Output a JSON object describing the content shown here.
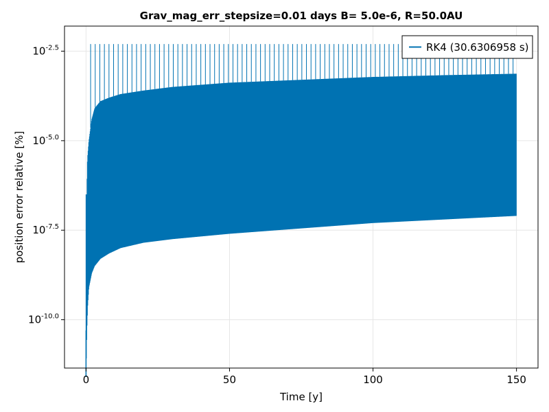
{
  "chart_data": {
    "type": "line",
    "title": "Grav_mag_err_stepsize=0.01 days B= 5.0e-6, R=50.0AU",
    "xlabel": "Time [y]",
    "ylabel": "position error relative [%]",
    "xlim": [
      -7.5,
      157.5
    ],
    "ylim_log10": [
      -11.35,
      -1.8
    ],
    "y_scale": "log10",
    "grid": true,
    "legend_position": "top-right",
    "x_ticks": [
      {
        "value": 0,
        "label": "0"
      },
      {
        "value": 50,
        "label": "50"
      },
      {
        "value": 100,
        "label": "100"
      },
      {
        "value": 150,
        "label": "150"
      }
    ],
    "y_ticks": [
      {
        "exp": -2.5,
        "base": "10",
        "sup": "-2.5"
      },
      {
        "exp": -5.0,
        "base": "10",
        "sup": "-5.0"
      },
      {
        "exp": -7.5,
        "base": "10",
        "sup": "-7.5"
      },
      {
        "exp": -10.0,
        "base": "10",
        "sup": "-10.0"
      }
    ],
    "series": [
      {
        "name": "RK4 (30.6306958 s)",
        "color": "#0072b2",
        "x_range": [
          0,
          150
        ],
        "spike_period": 1.6,
        "spike_peak_log10": -2.3,
        "minimum_log10": -11.6,
        "upper_envelope": {
          "x": [
            0.25,
            0.5,
            1,
            2,
            3,
            5,
            8,
            12,
            20,
            30,
            50,
            75,
            100,
            125,
            150
          ],
          "log10": [
            -6.5,
            -5.5,
            -5.0,
            -4.4,
            -4.1,
            -3.9,
            -3.8,
            -3.7,
            -3.6,
            -3.5,
            -3.38,
            -3.3,
            -3.22,
            -3.17,
            -3.13
          ]
        },
        "lower_envelope": {
          "x": [
            0,
            0.3,
            0.6,
            1,
            2,
            3,
            5,
            8,
            12,
            20,
            30,
            50,
            75,
            100,
            125,
            150
          ],
          "log10": [
            -11.6,
            -10.3,
            -9.6,
            -9.1,
            -8.7,
            -8.5,
            -8.3,
            -8.15,
            -8.0,
            -7.85,
            -7.75,
            -7.6,
            -7.45,
            -7.3,
            -7.2,
            -7.1
          ]
        }
      }
    ]
  }
}
